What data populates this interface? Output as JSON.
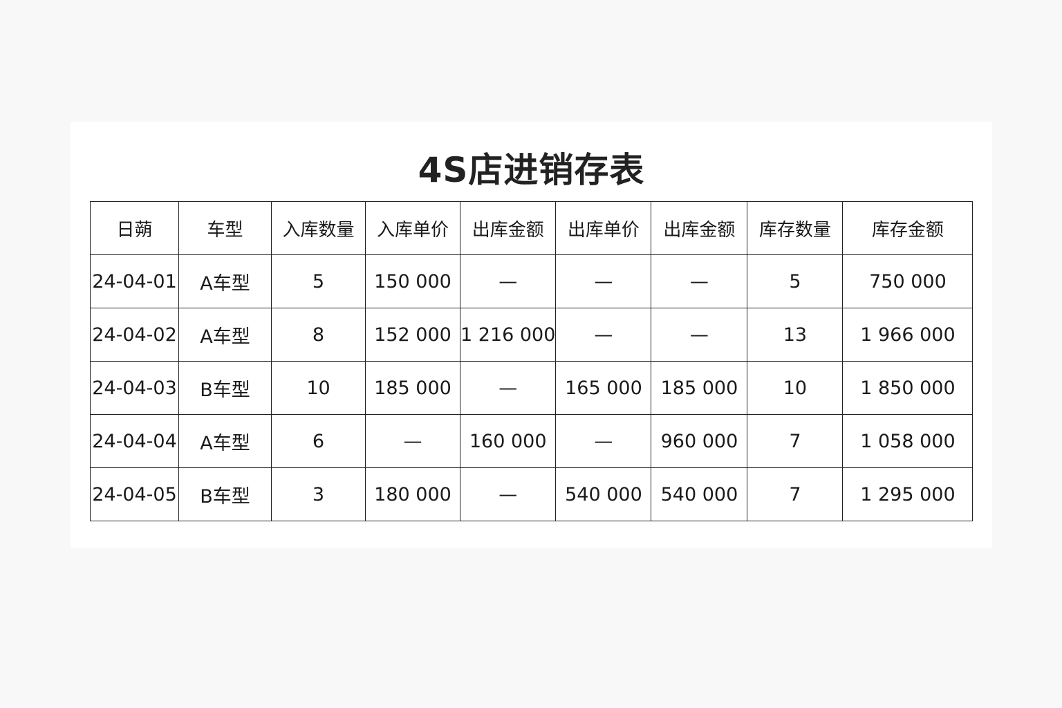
{
  "title": "4S店进销存表",
  "headers": [
    "日蒴",
    "车型",
    "入库数量",
    "入库单价",
    "出库金额",
    "出库单价",
    "出库金额",
    "库存数量",
    "库存金额"
  ],
  "rows": [
    [
      "24-04-01",
      "A车型",
      "5",
      "150 000",
      "—",
      "—",
      "—",
      "5",
      "750 000"
    ],
    [
      "24-04-02",
      "A车型",
      "8",
      "152 000",
      "1 216 000",
      "—",
      "—",
      "13",
      "1 966 000"
    ],
    [
      "24-04-03",
      "B车型",
      "10",
      "185 000",
      "—",
      "165 000",
      "185 000",
      "10",
      "1 850 000"
    ],
    [
      "24-04-04",
      "A车型",
      "6",
      "—",
      "160 000",
      "—",
      "960 000",
      "7",
      "1 058 000"
    ],
    [
      "24-04-05",
      "B车型",
      "3",
      "180 000",
      "—",
      "540 000",
      "540 000",
      "7",
      "1 295 000"
    ]
  ]
}
